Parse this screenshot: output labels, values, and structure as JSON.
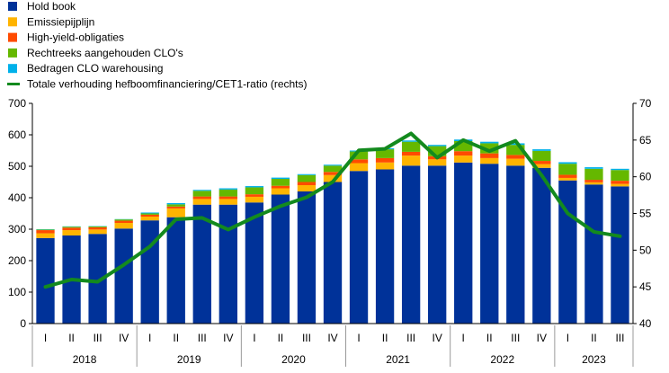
{
  "chart_data": {
    "type": "bar",
    "stacked": true,
    "legend_position": "top-left",
    "grid": false,
    "categories": [
      "I",
      "II",
      "III",
      "IV",
      "I",
      "II",
      "III",
      "IV",
      "I",
      "II",
      "III",
      "IV",
      "I",
      "II",
      "III",
      "IV",
      "I",
      "II",
      "III",
      "IV",
      "I",
      "II",
      "III"
    ],
    "years": [
      {
        "label": "2018",
        "start": 0,
        "count": 4
      },
      {
        "label": "2019",
        "start": 4,
        "count": 4
      },
      {
        "label": "2020",
        "start": 8,
        "count": 4
      },
      {
        "label": "2021",
        "start": 12,
        "count": 4
      },
      {
        "label": "2022",
        "start": 16,
        "count": 4
      },
      {
        "label": "2023",
        "start": 20,
        "count": 3
      }
    ],
    "ylim": [
      0,
      700
    ],
    "yticks": [
      0,
      100,
      200,
      300,
      400,
      500,
      600,
      700
    ],
    "y2lim": [
      40,
      70
    ],
    "y2ticks": [
      40,
      45,
      50,
      55,
      60,
      65,
      70
    ],
    "series": [
      {
        "name": "Hold book",
        "color": "#003299",
        "values": [
          272,
          280,
          285,
          302,
          328,
          338,
          378,
          378,
          385,
          410,
          420,
          450,
          485,
          490,
          502,
          502,
          512,
          508,
          502,
          495,
          455,
          442,
          436
        ]
      },
      {
        "name": "Emissiepijplijn",
        "color": "#ffb400",
        "values": [
          15,
          17,
          14,
          18,
          12,
          28,
          18,
          18,
          18,
          20,
          20,
          22,
          25,
          22,
          32,
          20,
          22,
          18,
          22,
          12,
          8,
          7,
          8
        ]
      },
      {
        "name": "High-yield-obligaties",
        "color": "#ff4b00",
        "values": [
          10,
          8,
          7,
          7,
          6,
          6,
          8,
          8,
          8,
          8,
          10,
          10,
          12,
          14,
          12,
          10,
          14,
          15,
          12,
          10,
          10,
          8,
          10
        ]
      },
      {
        "name": "Rechtreeks aangehouden CLO's",
        "color": "#65b800",
        "values": [
          2,
          3,
          3,
          4,
          4,
          7,
          18,
          22,
          22,
          22,
          22,
          20,
          25,
          28,
          32,
          32,
          32,
          32,
          32,
          32,
          35,
          35,
          34
        ]
      },
      {
        "name": "Bedragen CLO warehousing",
        "color": "#00b1ea",
        "values": [
          1,
          1,
          1,
          1,
          3,
          4,
          3,
          4,
          4,
          4,
          3,
          3,
          3,
          3,
          4,
          4,
          5,
          5,
          5,
          5,
          5,
          5,
          4
        ]
      }
    ],
    "line": {
      "name": "Totale verhouding hefboomfinanciering/CET1-ratio (rechts)",
      "color": "#138a1e",
      "axis": "right",
      "values": [
        45.0,
        46.0,
        45.7,
        48.0,
        50.5,
        54.2,
        54.4,
        52.8,
        54.5,
        56.0,
        57.2,
        59.3,
        63.6,
        63.8,
        65.9,
        62.6,
        65.0,
        63.5,
        64.9,
        60.2,
        55.0,
        52.5,
        51.9
      ]
    }
  }
}
